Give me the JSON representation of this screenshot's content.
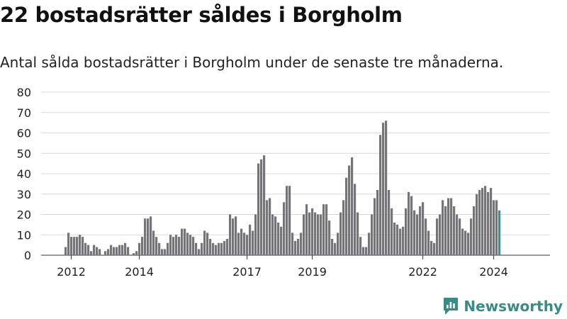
{
  "header": {
    "title": "22 bostadsrätter såldes i Borgholm",
    "subtitle": "Antal sålda bostadsrätter i Borgholm under de senaste tre månaderna."
  },
  "brand": {
    "name": "Newsworthy"
  },
  "colors": {
    "bar": "#76747a",
    "highlight": "#2e9a8f",
    "grid": "#d9d9d9",
    "brand": "#3a8a86"
  },
  "chart_data": {
    "type": "bar",
    "title": "",
    "xlabel": "",
    "ylabel": "",
    "ylim": [
      0,
      80
    ],
    "yticks": [
      0,
      10,
      20,
      30,
      40,
      50,
      60,
      70,
      80
    ],
    "xticks": [
      {
        "label": "2012",
        "index": 2
      },
      {
        "label": "2014",
        "index": 26
      },
      {
        "label": "2017",
        "index": 64
      },
      {
        "label": "2019",
        "index": 87
      },
      {
        "label": "2022",
        "index": 126
      },
      {
        "label": "2024",
        "index": 151
      }
    ],
    "annotation": {
      "label": "22",
      "index": 163
    },
    "values": [
      4,
      11,
      9,
      9,
      9,
      10,
      9,
      6,
      5,
      2,
      5,
      4,
      3,
      0,
      2,
      3,
      5,
      4,
      4,
      5,
      5,
      6,
      4,
      0,
      1,
      2,
      6,
      9,
      18,
      18,
      19,
      12,
      9,
      6,
      3,
      3,
      6,
      10,
      9,
      10,
      9,
      13,
      13,
      11,
      10,
      9,
      6,
      3,
      6,
      12,
      11,
      8,
      6,
      5,
      6,
      6,
      7,
      8,
      20,
      18,
      19,
      11,
      13,
      11,
      10,
      15,
      12,
      20,
      45,
      47,
      49,
      27,
      28,
      20,
      19,
      16,
      14,
      26,
      34,
      34,
      11,
      7,
      8,
      11,
      20,
      25,
      21,
      23,
      21,
      20,
      20,
      25,
      25,
      17,
      8,
      6,
      11,
      21,
      27,
      38,
      44,
      48,
      35,
      21,
      9,
      4,
      4,
      11,
      20,
      28,
      32,
      59,
      65,
      66,
      32,
      23,
      16,
      15,
      13,
      14,
      23,
      31,
      29,
      22,
      20,
      24,
      26,
      18,
      12,
      7,
      6,
      18,
      20,
      27,
      24,
      28,
      28,
      24,
      20,
      18,
      13,
      12,
      11,
      18,
      24,
      30,
      32,
      33,
      34,
      31,
      33,
      27,
      27,
      22
    ]
  }
}
